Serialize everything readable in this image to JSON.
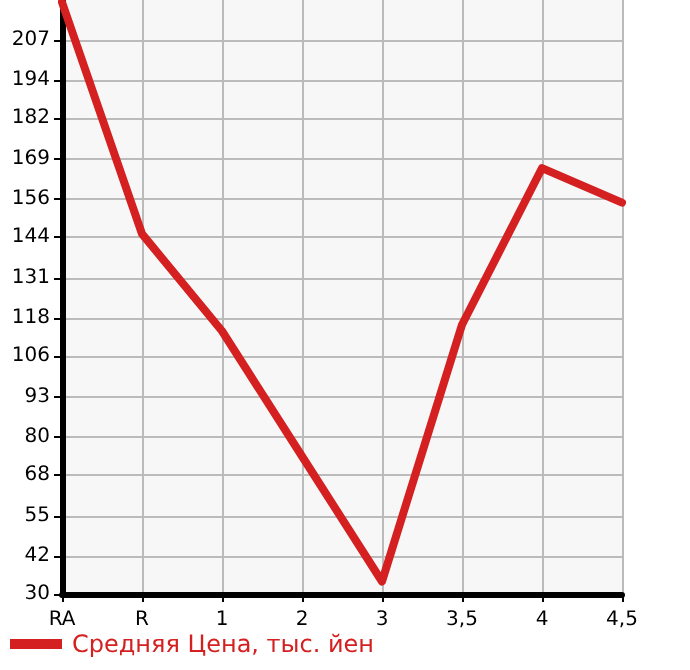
{
  "chart_data": {
    "type": "line",
    "categories": [
      "RA",
      "R",
      "1",
      "2",
      "3",
      "3,5",
      "4",
      "4,5"
    ],
    "series": [
      {
        "name": "Средняя Цена, тыс. йен",
        "color": "#d42020",
        "values": [
          219,
          145,
          114,
          74,
          34,
          116,
          166,
          155
        ]
      }
    ],
    "ylim": [
      30,
      219.7
    ],
    "yticks": [
      30,
      42,
      55,
      68,
      80,
      93,
      106,
      118,
      131,
      144,
      156,
      169,
      182,
      194,
      207
    ],
    "grid": true,
    "legend": "bottom",
    "marker": "none",
    "line_style": "solid"
  }
}
